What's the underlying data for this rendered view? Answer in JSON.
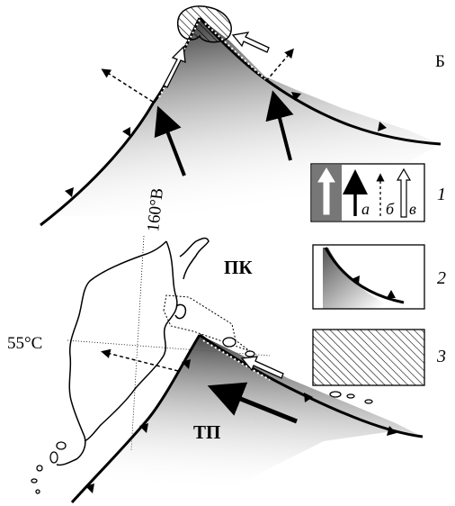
{
  "labels": {
    "panel_b": "Б",
    "meridian": "160°В",
    "parallel": "55°С",
    "region_pk": "ПК",
    "region_tp": "ТП"
  },
  "legend": [
    {
      "number": "1",
      "sublabels": [
        "а",
        "б",
        "в"
      ],
      "meaning_icons": [
        "thick-light-arrow-icon",
        "solid-black-arrow-icon",
        "dashed-arrow-icon",
        "outline-arrow-icon"
      ]
    },
    {
      "number": "2",
      "meaning_icons": [
        "plate-gradient-icon",
        "trench-teeth-icon"
      ]
    },
    {
      "number": "3",
      "meaning_icons": [
        "hatched-area-icon"
      ]
    }
  ],
  "colors": {
    "ink": "#000000",
    "plate_dark": "#5a5a5a",
    "plate_light": "#ffffff",
    "legend_gray": "#777777"
  }
}
